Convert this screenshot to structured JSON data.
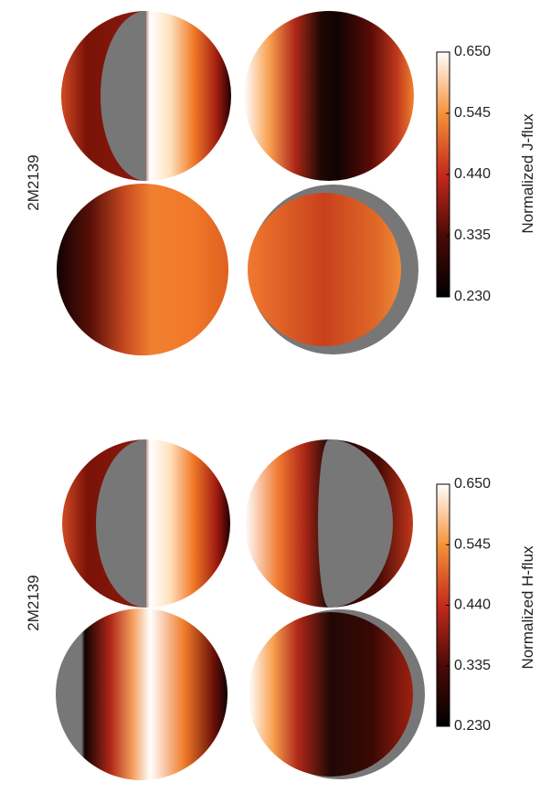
{
  "panels": [
    {
      "label": "2M2139",
      "colorbar": {
        "title": "Normalized J-flux",
        "lim": [
          0.23,
          0.65
        ],
        "ticks": [
          {
            "value": 0.23,
            "label": "0.230"
          },
          {
            "value": 0.335,
            "label": "0.335"
          },
          {
            "value": 0.44,
            "label": "0.440"
          },
          {
            "value": 0.545,
            "label": "0.545"
          },
          {
            "value": 0.65,
            "label": "0.650"
          }
        ]
      }
    },
    {
      "label": "2M2139",
      "colorbar": {
        "title": "Normalized H-flux",
        "lim": [
          0.23,
          0.65
        ],
        "ticks": [
          {
            "value": 0.23,
            "label": "0.230"
          },
          {
            "value": 0.335,
            "label": "0.335"
          },
          {
            "value": 0.44,
            "label": "0.440"
          },
          {
            "value": 0.545,
            "label": "0.545"
          },
          {
            "value": 0.65,
            "label": "0.650"
          }
        ]
      }
    }
  ]
}
